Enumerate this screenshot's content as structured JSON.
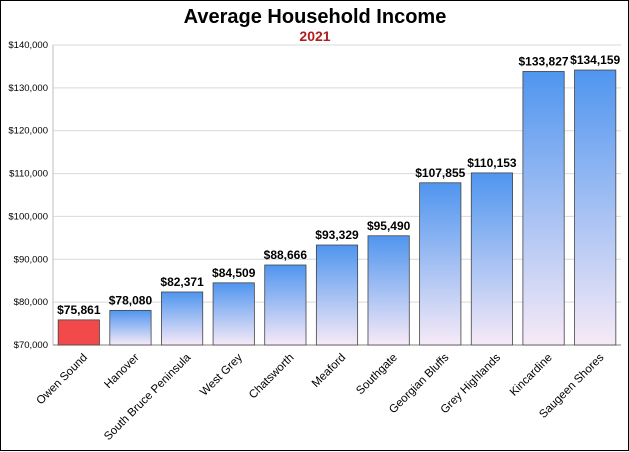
{
  "chart_data": {
    "type": "bar",
    "title": "Average Household Income",
    "subtitle": "2021",
    "xlabel": "",
    "ylabel": "",
    "ylim": [
      70000,
      140000
    ],
    "yticks": [
      70000,
      80000,
      90000,
      100000,
      110000,
      120000,
      130000,
      140000
    ],
    "ytick_labels": [
      "$70,000",
      "$80,000",
      "$90,000",
      "$100,000",
      "$110,000",
      "$120,000",
      "$130,000",
      "$140,000"
    ],
    "grid": true,
    "legend": "none",
    "categories": [
      "Owen Sound",
      "Hanover",
      "South Bruce Peninsula",
      "West Grey",
      "Chatsworth",
      "Meaford",
      "Southgate",
      "Georgian Bluffs",
      "Grey Highlands",
      "Kincardine",
      "Saugeen Shores"
    ],
    "values": [
      75861,
      78080,
      82371,
      84509,
      88666,
      93329,
      95490,
      107855,
      110153,
      133827,
      134159
    ],
    "data_labels": [
      "$75,861",
      "$78,080",
      "$82,371",
      "$84,509",
      "$88,666",
      "$93,329",
      "$95,490",
      "$107,855",
      "$110,153",
      "$133,827",
      "$134,159"
    ],
    "highlight_index": 0,
    "colors": {
      "highlight": "#f24a4a",
      "bar_top": "#4f95ef",
      "bar_bottom": "#f7eaf7",
      "subtitle": "#b01e1e",
      "grid": "#d9d9d9"
    }
  }
}
